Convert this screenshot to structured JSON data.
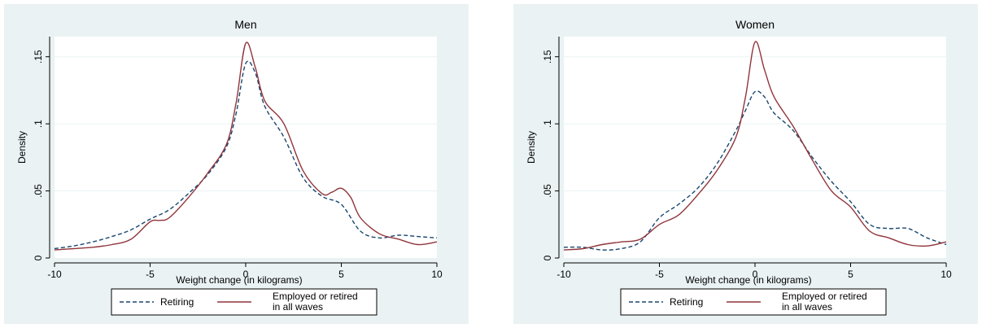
{
  "colors": {
    "retiring": "#1a476f",
    "employed": "#90353b",
    "background": "#eaf2f3",
    "plot_bg": "#ffffff",
    "grid": "#eaf2f3"
  },
  "chart_data": [
    {
      "type": "line",
      "title": "Men",
      "xlabel": "Weight change (in kilograms)",
      "ylabel": "Density",
      "xlim": [
        -10,
        10
      ],
      "ylim": [
        0,
        0.165
      ],
      "x_ticks": [
        -10,
        -5,
        0,
        5,
        10
      ],
      "x_tick_labels": [
        "-10",
        "-5",
        "0",
        "5",
        "10"
      ],
      "y_ticks": [
        0,
        0.05,
        0.1,
        0.15
      ],
      "y_tick_labels": [
        "0",
        ".05",
        ".1",
        ".15"
      ],
      "grid": true,
      "legend_placement": "bottom",
      "series": [
        {
          "name": "Retiring",
          "style": "dashed",
          "x": [
            -10,
            -9,
            -8,
            -7,
            -6,
            -5,
            -4,
            -3,
            -2,
            -1,
            -0.5,
            0,
            0.5,
            1,
            2,
            3,
            4,
            5,
            6,
            7,
            8,
            9,
            10
          ],
          "y": [
            0.007,
            0.009,
            0.012,
            0.016,
            0.021,
            0.029,
            0.036,
            0.048,
            0.062,
            0.083,
            0.108,
            0.145,
            0.138,
            0.113,
            0.09,
            0.06,
            0.046,
            0.04,
            0.02,
            0.015,
            0.017,
            0.016,
            0.015
          ]
        },
        {
          "name": "Employed or retired in all waves",
          "style": "solid",
          "x": [
            -10,
            -9,
            -8,
            -7,
            -6,
            -5,
            -4.5,
            -4,
            -3,
            -2,
            -1,
            -0.5,
            0,
            0.5,
            1,
            2,
            3,
            4,
            4.5,
            5,
            5.5,
            6,
            7,
            8,
            9,
            10
          ],
          "y": [
            0.006,
            0.007,
            0.008,
            0.01,
            0.014,
            0.027,
            0.028,
            0.03,
            0.045,
            0.063,
            0.085,
            0.116,
            0.16,
            0.142,
            0.117,
            0.1,
            0.065,
            0.048,
            0.049,
            0.052,
            0.045,
            0.03,
            0.018,
            0.014,
            0.01,
            0.012
          ]
        }
      ]
    },
    {
      "type": "line",
      "title": "Women",
      "xlabel": "Weight change (in kilograms)",
      "ylabel": "Density",
      "xlim": [
        -10,
        10
      ],
      "ylim": [
        0,
        0.165
      ],
      "x_ticks": [
        -10,
        -5,
        0,
        5,
        10
      ],
      "x_tick_labels": [
        "-10",
        "-5",
        "0",
        "5",
        "10"
      ],
      "y_ticks": [
        0,
        0.05,
        0.1,
        0.15
      ],
      "y_tick_labels": [
        "0",
        ".05",
        ".1",
        ".15"
      ],
      "grid": true,
      "legend_placement": "bottom",
      "series": [
        {
          "name": "Retiring",
          "style": "dashed",
          "x": [
            -10,
            -9,
            -8,
            -7,
            -6,
            -5,
            -4,
            -3,
            -2,
            -1,
            -0.5,
            0,
            0.5,
            1,
            2,
            3,
            4,
            5,
            6,
            7,
            8,
            9,
            10
          ],
          "y": [
            0.008,
            0.008,
            0.006,
            0.007,
            0.012,
            0.03,
            0.04,
            0.052,
            0.07,
            0.095,
            0.11,
            0.124,
            0.12,
            0.108,
            0.095,
            0.075,
            0.057,
            0.042,
            0.025,
            0.022,
            0.022,
            0.015,
            0.01
          ]
        },
        {
          "name": "Employed or retired in all waves",
          "style": "solid",
          "x": [
            -10,
            -9,
            -8,
            -7,
            -6,
            -5,
            -4,
            -3,
            -2,
            -1,
            -0.5,
            0,
            0.5,
            1,
            2,
            3,
            4,
            5,
            6,
            7,
            8,
            9,
            10
          ],
          "y": [
            0.006,
            0.007,
            0.01,
            0.012,
            0.014,
            0.025,
            0.032,
            0.047,
            0.065,
            0.09,
            0.12,
            0.161,
            0.14,
            0.12,
            0.098,
            0.073,
            0.05,
            0.038,
            0.02,
            0.015,
            0.01,
            0.009,
            0.012
          ]
        }
      ]
    }
  ],
  "legend": {
    "retiring_label": "Retiring",
    "employed_label_line1": "Employed or retired",
    "employed_label_line2": "in all waves"
  }
}
